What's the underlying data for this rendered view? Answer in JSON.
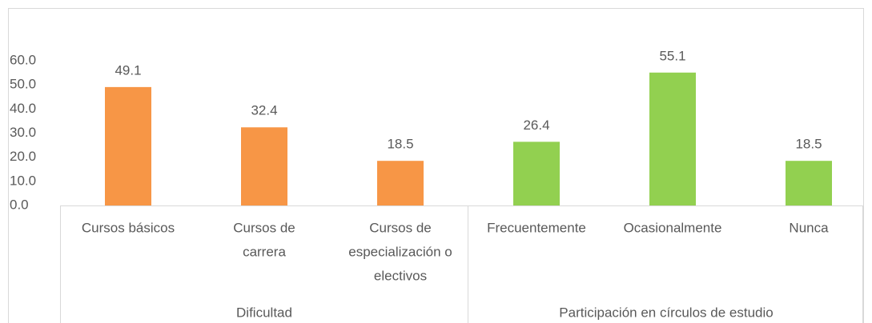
{
  "chart_data": {
    "type": "bar",
    "groups": [
      {
        "label": "Dificultad",
        "count": 3
      },
      {
        "label": "Participación en círculos de estudio",
        "count": 3
      }
    ],
    "categories": [
      [
        "Cursos básicos"
      ],
      [
        "Cursos de",
        "carrera"
      ],
      [
        "Cursos de",
        "especialización o",
        "electivos"
      ],
      [
        "Frecuentemente"
      ],
      [
        "Ocasionalmente"
      ],
      [
        "Nunca"
      ]
    ],
    "values": [
      49.1,
      32.4,
      18.5,
      26.4,
      55.1,
      18.5
    ],
    "colors": [
      "#f79646",
      "#f79646",
      "#f79646",
      "#92d050",
      "#92d050",
      "#92d050"
    ],
    "ylim": [
      0,
      60
    ],
    "yticks": [
      {
        "value": 0,
        "label": "0.0"
      },
      {
        "value": 10,
        "label": "10.0"
      },
      {
        "value": 20,
        "label": "20.0"
      },
      {
        "value": 30,
        "label": "30.0"
      },
      {
        "value": 40,
        "label": "40.0"
      },
      {
        "value": 50,
        "label": "50.0"
      },
      {
        "value": 60,
        "label": "60.0"
      }
    ],
    "grid": false
  }
}
